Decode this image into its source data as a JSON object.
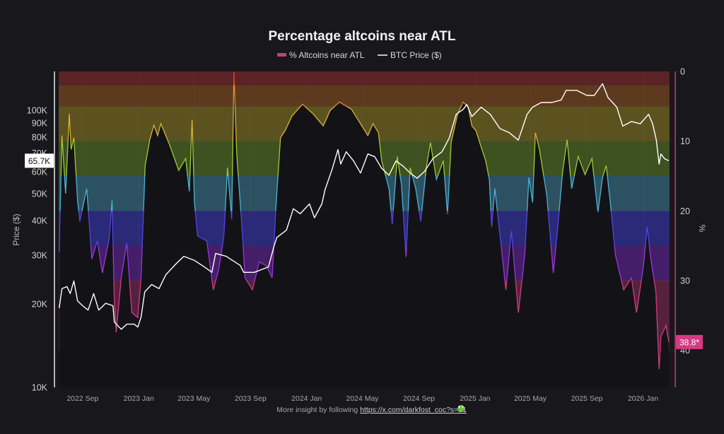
{
  "chart_data": {
    "type": "line",
    "title": "Percentage altcoins near ATL",
    "legend": {
      "placement": "top",
      "entries": [
        {
          "label": "% Altcoins near ATL",
          "color": "#c2407a"
        },
        {
          "label": "BTC Price ($)",
          "color": "#ffffff"
        }
      ]
    },
    "x_axis": {
      "type": "date",
      "range": [
        "2022-07-11",
        "2026-03-12"
      ],
      "ticks": [
        {
          "date": "2022-09-01",
          "label": "2022 Sep"
        },
        {
          "date": "2023-01-01",
          "label": "2023 Jan"
        },
        {
          "date": "2023-05-01",
          "label": "2023 May"
        },
        {
          "date": "2023-09-01",
          "label": "2023 Sep"
        },
        {
          "date": "2024-01-01",
          "label": "2024 Jan"
        },
        {
          "date": "2024-05-01",
          "label": "2024 May"
        },
        {
          "date": "2024-09-01",
          "label": "2024 Sep"
        },
        {
          "date": "2025-01-01",
          "label": "2025 Jan"
        },
        {
          "date": "2025-05-01",
          "label": "2025 May"
        },
        {
          "date": "2025-09-01",
          "label": "2025 Sep"
        },
        {
          "date": "2026-01-01",
          "label": "2026 Jan"
        }
      ]
    },
    "y_left": {
      "label": "Price ($)",
      "scale": "log",
      "range": [
        10000,
        138000
      ],
      "ticks": [
        {
          "value": 10000,
          "label": "10K"
        },
        {
          "value": 20000,
          "label": "20K"
        },
        {
          "value": 30000,
          "label": "30K"
        },
        {
          "value": 40000,
          "label": "40K"
        },
        {
          "value": 50000,
          "label": "50K"
        },
        {
          "value": 60000,
          "label": "60K"
        },
        {
          "value": 70000,
          "label": "70K"
        },
        {
          "value": 80000,
          "label": "80K"
        },
        {
          "value": 90000,
          "label": "90K"
        },
        {
          "value": 100000,
          "label": "100K"
        }
      ],
      "current_value_label": "65.7K",
      "current_value": 65700
    },
    "y_right": {
      "label": "%",
      "scale": "linear",
      "inverted": true,
      "range": [
        0,
        45.3
      ],
      "ticks": [
        {
          "value": 0,
          "label": "0"
        },
        {
          "value": 10,
          "label": "10"
        },
        {
          "value": 20,
          "label": "20"
        },
        {
          "value": 30,
          "label": "30"
        },
        {
          "value": 40,
          "label": "40"
        }
      ],
      "current_value_label": "38.8*",
      "current_value": 38.8,
      "current_badge_color": "#d63a83"
    },
    "grid": true,
    "bands": [
      {
        "from": 0,
        "to": 2,
        "fill": "#5a2427",
        "line": "#e0452f"
      },
      {
        "from": 2,
        "to": 5,
        "fill": "#5d3a1e",
        "line": "#e68a2e"
      },
      {
        "from": 5,
        "to": 10,
        "fill": "#5b5220",
        "line": "#d9b236"
      },
      {
        "from": 10,
        "to": 15,
        "fill": "#3e5120",
        "line": "#9ccc34"
      },
      {
        "from": 15,
        "to": 20,
        "fill": "#2c5262",
        "line": "#4cb2d6"
      },
      {
        "from": 20,
        "to": 25,
        "fill": "#2b2a78",
        "line": "#5444e6"
      },
      {
        "from": 25,
        "to": 30,
        "fill": "#441e68",
        "line": "#9b34e0"
      },
      {
        "from": 30,
        "to": 40,
        "fill": "#56203f",
        "line": "#d23c7f"
      }
    ],
    "series": [
      {
        "name": "% Altcoins near ATL",
        "axis": "right",
        "points": [
          [
            "2022-07-12",
            25.9
          ],
          [
            "2022-07-18",
            9.2
          ],
          [
            "2022-07-26",
            17.5
          ],
          [
            "2022-08-03",
            6.1
          ],
          [
            "2022-08-07",
            11.2
          ],
          [
            "2022-08-13",
            9.5
          ],
          [
            "2022-08-21",
            18.5
          ],
          [
            "2022-08-26",
            21.5
          ],
          [
            "2022-09-10",
            16.8
          ],
          [
            "2022-09-21",
            26.9
          ],
          [
            "2022-10-03",
            24.3
          ],
          [
            "2022-10-14",
            28.9
          ],
          [
            "2022-10-29",
            23.9
          ],
          [
            "2022-11-04",
            18.5
          ],
          [
            "2022-11-09",
            32.9
          ],
          [
            "2022-11-13",
            37.4
          ],
          [
            "2022-11-24",
            29.6
          ],
          [
            "2022-12-06",
            24.6
          ],
          [
            "2022-12-17",
            34.6
          ],
          [
            "2022-12-30",
            35.3
          ],
          [
            "2023-01-06",
            29.6
          ],
          [
            "2023-01-15",
            13.5
          ],
          [
            "2023-01-25",
            9.8
          ],
          [
            "2023-02-03",
            7.7
          ],
          [
            "2023-02-11",
            9.2
          ],
          [
            "2023-02-18",
            7.5
          ],
          [
            "2023-03-09",
            10.5
          ],
          [
            "2023-03-29",
            14.2
          ],
          [
            "2023-04-13",
            12.5
          ],
          [
            "2023-04-21",
            17.2
          ],
          [
            "2023-04-27",
            6.9
          ],
          [
            "2023-05-02",
            18.8
          ],
          [
            "2023-05-09",
            23.6
          ],
          [
            "2023-05-29",
            24.3
          ],
          [
            "2023-06-12",
            31.3
          ],
          [
            "2023-06-24",
            28.3
          ],
          [
            "2023-07-05",
            23.6
          ],
          [
            "2023-07-13",
            13.8
          ],
          [
            "2023-07-22",
            21.2
          ],
          [
            "2023-07-27",
            0.1
          ],
          [
            "2023-08-02",
            11.8
          ],
          [
            "2023-08-14",
            22.9
          ],
          [
            "2023-08-20",
            29.6
          ],
          [
            "2023-09-05",
            31.3
          ],
          [
            "2023-09-20",
            27.3
          ],
          [
            "2023-10-06",
            27.9
          ],
          [
            "2023-10-18",
            29.6
          ],
          [
            "2023-10-26",
            19.5
          ],
          [
            "2023-11-05",
            9.5
          ],
          [
            "2023-11-15",
            8.5
          ],
          [
            "2023-11-30",
            6.4
          ],
          [
            "2023-12-23",
            4.7
          ],
          [
            "2024-01-15",
            6.1
          ],
          [
            "2024-02-06",
            7.8
          ],
          [
            "2024-02-21",
            5.6
          ],
          [
            "2024-03-12",
            4.4
          ],
          [
            "2024-04-07",
            5.4
          ],
          [
            "2024-04-27",
            7.5
          ],
          [
            "2024-05-13",
            9.2
          ],
          [
            "2024-05-24",
            7.5
          ],
          [
            "2024-06-05",
            8.8
          ],
          [
            "2024-06-12",
            12.8
          ],
          [
            "2024-06-28",
            16.8
          ],
          [
            "2024-07-05",
            21.9
          ],
          [
            "2024-07-16",
            12.2
          ],
          [
            "2024-07-25",
            16.2
          ],
          [
            "2024-08-04",
            26.6
          ],
          [
            "2024-08-13",
            13.8
          ],
          [
            "2024-08-25",
            16.8
          ],
          [
            "2024-09-05",
            21.5
          ],
          [
            "2024-09-17",
            13.8
          ],
          [
            "2024-09-26",
            10.2
          ],
          [
            "2024-10-09",
            15.5
          ],
          [
            "2024-10-24",
            12.8
          ],
          [
            "2024-11-02",
            20.5
          ],
          [
            "2024-11-10",
            10.2
          ],
          [
            "2024-11-24",
            6.1
          ],
          [
            "2024-12-06",
            4.4
          ],
          [
            "2024-12-17",
            5.1
          ],
          [
            "2024-12-25",
            7.8
          ],
          [
            "2025-01-03",
            8.5
          ],
          [
            "2025-01-14",
            10.8
          ],
          [
            "2025-01-24",
            12.8
          ],
          [
            "2025-02-01",
            15.5
          ],
          [
            "2025-02-06",
            22.3
          ],
          [
            "2025-02-13",
            16.8
          ],
          [
            "2025-02-26",
            24.6
          ],
          [
            "2025-03-09",
            31.3
          ],
          [
            "2025-03-21",
            22.9
          ],
          [
            "2025-04-05",
            34.6
          ],
          [
            "2025-04-19",
            26.3
          ],
          [
            "2025-04-28",
            15.2
          ],
          [
            "2025-05-06",
            18.8
          ],
          [
            "2025-05-12",
            8.8
          ],
          [
            "2025-05-21",
            11.2
          ],
          [
            "2025-06-06",
            17.8
          ],
          [
            "2025-06-20",
            28.9
          ],
          [
            "2025-06-29",
            22.9
          ],
          [
            "2025-07-10",
            14.5
          ],
          [
            "2025-07-20",
            9.8
          ],
          [
            "2025-07-30",
            16.8
          ],
          [
            "2025-08-13",
            12.2
          ],
          [
            "2025-08-28",
            14.8
          ],
          [
            "2025-09-12",
            12.5
          ],
          [
            "2025-09-25",
            20.2
          ],
          [
            "2025-10-05",
            15.2
          ],
          [
            "2025-10-13",
            13.5
          ],
          [
            "2025-10-22",
            18.8
          ],
          [
            "2025-11-02",
            26.3
          ],
          [
            "2025-11-20",
            31.3
          ],
          [
            "2025-12-07",
            29.6
          ],
          [
            "2025-12-18",
            34.6
          ],
          [
            "2026-01-02",
            27.9
          ],
          [
            "2026-01-10",
            22.3
          ],
          [
            "2026-01-18",
            26.9
          ],
          [
            "2026-01-29",
            31.6
          ],
          [
            "2026-02-05",
            42.7
          ],
          [
            "2026-02-09",
            38.0
          ],
          [
            "2026-02-20",
            36.4
          ],
          [
            "2026-02-26",
            38.8
          ]
        ]
      },
      {
        "name": "BTC Price ($)",
        "axis": "left",
        "points": [
          [
            "2022-07-12",
            19300
          ],
          [
            "2022-07-18",
            22700
          ],
          [
            "2022-07-29",
            23100
          ],
          [
            "2022-08-05",
            21800
          ],
          [
            "2022-08-13",
            24200
          ],
          [
            "2022-08-21",
            20500
          ],
          [
            "2022-09-01",
            19700
          ],
          [
            "2022-09-13",
            19000
          ],
          [
            "2022-09-25",
            21800
          ],
          [
            "2022-10-06",
            19000
          ],
          [
            "2022-10-21",
            20100
          ],
          [
            "2022-11-06",
            19700
          ],
          [
            "2022-11-09",
            17200
          ],
          [
            "2022-11-24",
            16200
          ],
          [
            "2022-12-06",
            16900
          ],
          [
            "2022-12-22",
            16900
          ],
          [
            "2022-12-30",
            16500
          ],
          [
            "2023-01-06",
            17900
          ],
          [
            "2023-01-14",
            22100
          ],
          [
            "2023-01-29",
            23500
          ],
          [
            "2023-02-14",
            22700
          ],
          [
            "2023-03-01",
            25500
          ],
          [
            "2023-03-24",
            28000
          ],
          [
            "2023-04-09",
            29700
          ],
          [
            "2023-05-02",
            28700
          ],
          [
            "2023-05-25",
            27100
          ],
          [
            "2023-06-09",
            26000
          ],
          [
            "2023-06-17",
            30400
          ],
          [
            "2023-07-10",
            29700
          ],
          [
            "2023-08-10",
            27500
          ],
          [
            "2023-08-17",
            26000
          ],
          [
            "2023-09-09",
            26000
          ],
          [
            "2023-10-10",
            27200
          ],
          [
            "2023-10-22",
            32300
          ],
          [
            "2023-10-28",
            34700
          ],
          [
            "2023-11-18",
            36900
          ],
          [
            "2023-12-03",
            44100
          ],
          [
            "2023-12-18",
            42300
          ],
          [
            "2024-01-07",
            45900
          ],
          [
            "2024-01-18",
            40900
          ],
          [
            "2024-02-03",
            45900
          ],
          [
            "2024-02-10",
            51700
          ],
          [
            "2024-02-26",
            61700
          ],
          [
            "2024-03-09",
            72100
          ],
          [
            "2024-03-15",
            63900
          ],
          [
            "2024-03-27",
            70800
          ],
          [
            "2024-04-12",
            65600
          ],
          [
            "2024-04-27",
            59300
          ],
          [
            "2024-05-13",
            69500
          ],
          [
            "2024-05-28",
            67900
          ],
          [
            "2024-06-12",
            61700
          ],
          [
            "2024-06-28",
            58200
          ],
          [
            "2024-07-13",
            65600
          ],
          [
            "2024-07-28",
            62900
          ],
          [
            "2024-08-13",
            59300
          ],
          [
            "2024-08-28",
            56800
          ],
          [
            "2024-09-13",
            60100
          ],
          [
            "2024-10-01",
            66800
          ],
          [
            "2024-10-21",
            70800
          ],
          [
            "2024-11-06",
            79400
          ],
          [
            "2024-11-21",
            96600
          ],
          [
            "2024-12-06",
            100600
          ],
          [
            "2024-12-14",
            104800
          ],
          [
            "2024-12-25",
            94800
          ],
          [
            "2025-01-14",
            102500
          ],
          [
            "2025-02-03",
            96600
          ],
          [
            "2025-02-24",
            85800
          ],
          [
            "2025-03-16",
            83000
          ],
          [
            "2025-04-05",
            78000
          ],
          [
            "2025-04-24",
            96600
          ],
          [
            "2025-05-06",
            102500
          ],
          [
            "2025-05-25",
            106600
          ],
          [
            "2025-06-17",
            106600
          ],
          [
            "2025-07-07",
            108700
          ],
          [
            "2025-07-18",
            117900
          ],
          [
            "2025-08-10",
            117900
          ],
          [
            "2025-09-01",
            113000
          ],
          [
            "2025-09-17",
            113000
          ],
          [
            "2025-10-05",
            124600
          ],
          [
            "2025-10-17",
            111000
          ],
          [
            "2025-11-05",
            102500
          ],
          [
            "2025-11-18",
            87600
          ],
          [
            "2025-12-07",
            91000
          ],
          [
            "2025-12-26",
            89300
          ],
          [
            "2026-01-13",
            96600
          ],
          [
            "2026-01-22",
            89300
          ],
          [
            "2026-01-30",
            78000
          ],
          [
            "2026-02-05",
            63900
          ],
          [
            "2026-02-09",
            69500
          ],
          [
            "2026-02-17",
            66800
          ],
          [
            "2026-02-26",
            65700
          ]
        ]
      }
    ]
  },
  "footer": {
    "text": "More insight by following ",
    "link": "https://x.com/darkfost_coc?s=21",
    "icon": "frog-emoji"
  }
}
